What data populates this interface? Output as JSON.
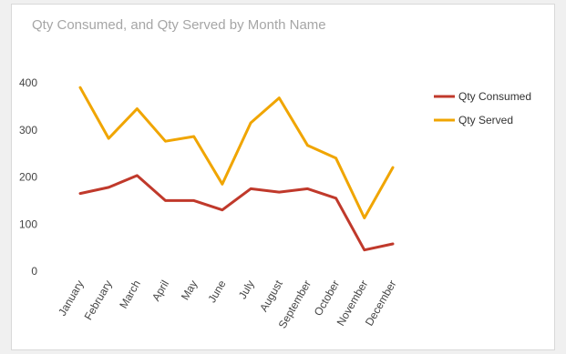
{
  "chart_data": {
    "type": "line",
    "title": "Qty Consumed, and Qty Served by Month Name",
    "xlabel": "",
    "ylabel": "",
    "categories": [
      "January",
      "February",
      "March",
      "April",
      "May",
      "June",
      "July",
      "August",
      "September",
      "October",
      "November",
      "December"
    ],
    "series": [
      {
        "name": "Qty Consumed",
        "color": "#c0392b",
        "values": [
          165,
          178,
          203,
          150,
          150,
          130,
          175,
          168,
          175,
          155,
          45,
          58
        ]
      },
      {
        "name": "Qty Served",
        "color": "#f0a500",
        "values": [
          390,
          282,
          345,
          276,
          286,
          185,
          315,
          368,
          267,
          240,
          113,
          220
        ]
      }
    ],
    "yticks": [
      0,
      100,
      200,
      300,
      400
    ],
    "ylim": [
      0,
      420
    ],
    "grid": false,
    "legend": "right"
  }
}
